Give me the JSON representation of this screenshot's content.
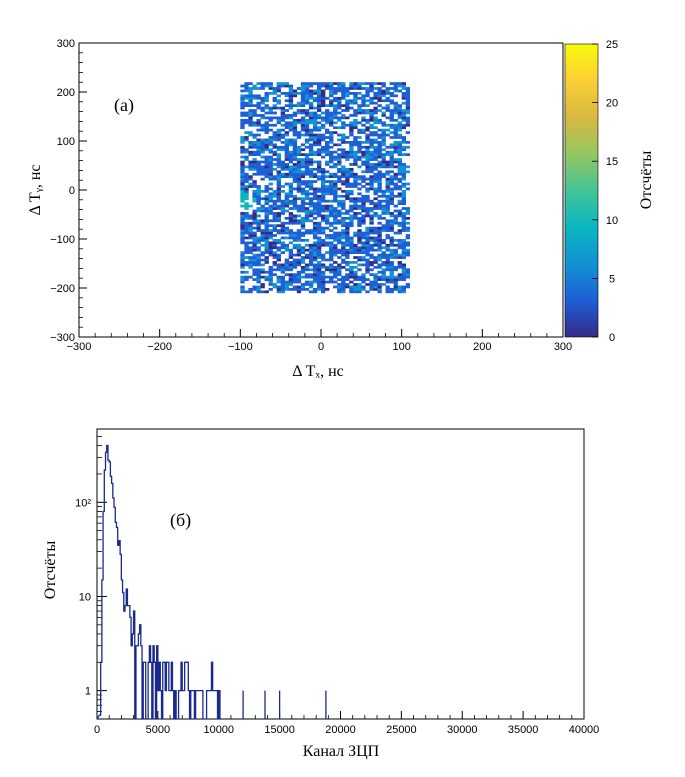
{
  "chart_data": [
    {
      "type": "heatmap",
      "panel_label": "(а)",
      "xlabel": "Δ Tₓ, нс",
      "ylabel": "Δ Tᵧ, нс",
      "xlim": [
        -300,
        300
      ],
      "ylim": [
        -300,
        300
      ],
      "xticks": [
        "−300",
        "−200",
        "−100",
        "0",
        "100",
        "200",
        "300"
      ],
      "yticks": [
        "−300",
        "−200",
        "−100",
        "0",
        "100",
        "200",
        "300"
      ],
      "bin_width_ns": 5,
      "populated_region": {
        "x": [
          -100,
          110
        ],
        "y": [
          -210,
          220
        ]
      },
      "hot_spot": {
        "x": -105,
        "y": -25,
        "approx_counts": 8
      },
      "typical_counts": [
        1,
        6
      ],
      "colorbar": {
        "label": "Отсчёты",
        "range": [
          0,
          25
        ],
        "ticks": [
          "0",
          "5",
          "10",
          "15",
          "20",
          "25"
        ],
        "colors": [
          "#352a87",
          "#1e5fd6",
          "#1292d3",
          "#0ab7c0",
          "#43c496",
          "#95c65f",
          "#d7b941",
          "#fbcf34",
          "#f9fb0e"
        ]
      }
    },
    {
      "type": "line",
      "panel_label": "(б)",
      "xlabel": "Канал ЗЦП",
      "ylabel": "Отсчёты",
      "yscale": "log",
      "xlim": [
        0,
        40000
      ],
      "ylim": [
        0.5,
        600
      ],
      "xticks": [
        "0",
        "5000",
        "10000",
        "15000",
        "20000",
        "25000",
        "30000",
        "35000",
        "40000"
      ],
      "yticks": [
        {
          "value": 1,
          "label": "1"
        },
        {
          "value": 10,
          "label": "10"
        },
        {
          "value": 100,
          "label": "10²"
        }
      ],
      "line_color": "#1a2a8c",
      "bin_width": 100,
      "peak": {
        "x": 800,
        "y": 400
      },
      "tail_x": [
        1000,
        1200,
        1500,
        1800,
        2000,
        2500,
        3000,
        3500,
        4000,
        5000,
        6000,
        7000,
        8000,
        9000,
        10000
      ],
      "tail_y": [
        300,
        150,
        60,
        25,
        14,
        8,
        5,
        3.5,
        2.5,
        1.8,
        1.5,
        1.3,
        1.1,
        1.0,
        1.0
      ],
      "isolated_x": [
        12000,
        13800,
        15000,
        18800
      ]
    }
  ]
}
